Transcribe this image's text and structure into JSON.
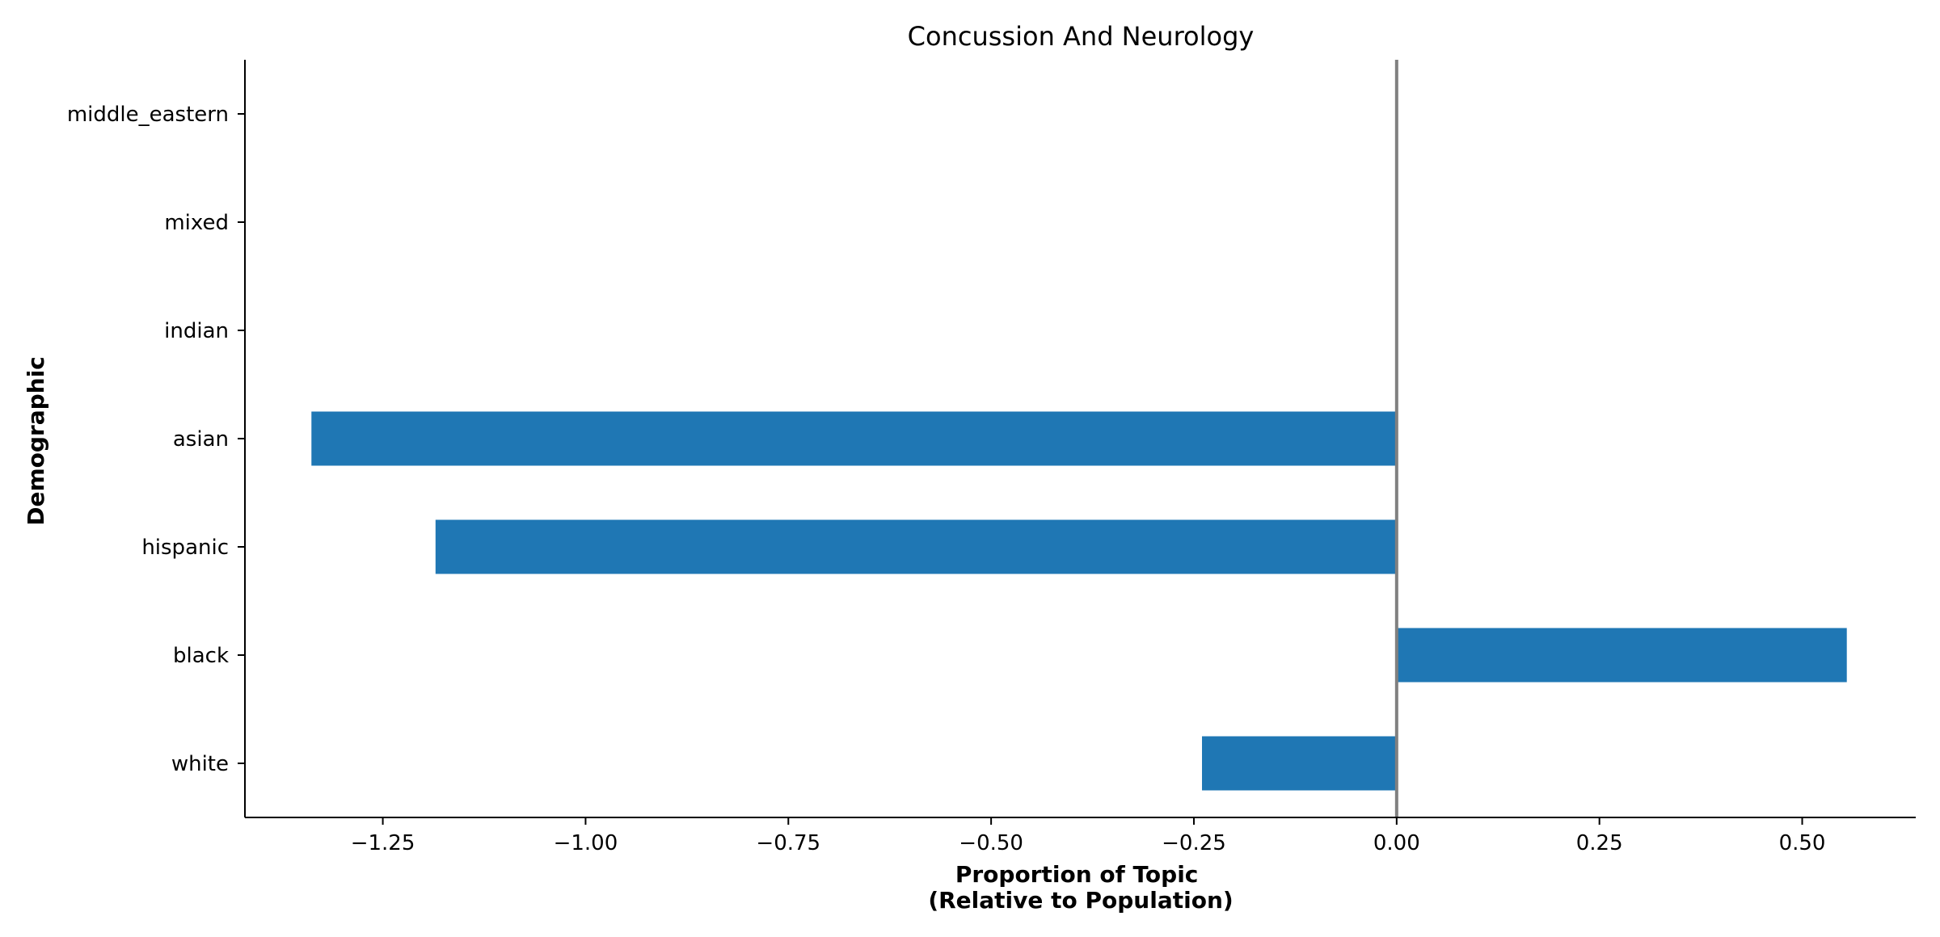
{
  "chart_data": {
    "type": "bar",
    "orientation": "horizontal",
    "title": "Concussion And Neurology",
    "xlabel_lines": [
      "Proportion of Topic",
      "(Relative to Population)"
    ],
    "ylabel": "Demographic",
    "categories": [
      "white",
      "black",
      "hispanic",
      "asian",
      "indian",
      "mixed",
      "middle_eastern"
    ],
    "values": [
      -0.24,
      0.555,
      -1.185,
      -1.338,
      null,
      null,
      null
    ],
    "xlim": [
      -1.42,
      0.64
    ],
    "xticks": [
      -1.25,
      -1.0,
      -0.75,
      -0.5,
      -0.25,
      0.0,
      0.25,
      0.5
    ],
    "xtick_labels": [
      "−1.25",
      "−1.00",
      "−0.75",
      "−0.50",
      "−0.25",
      "0.00",
      "0.25",
      "0.50"
    ],
    "zero_line": true,
    "grid": false,
    "legend": "none",
    "colors": {
      "bar": "#1f77b4",
      "zero_line": "#808080",
      "axis": "#000000"
    }
  }
}
